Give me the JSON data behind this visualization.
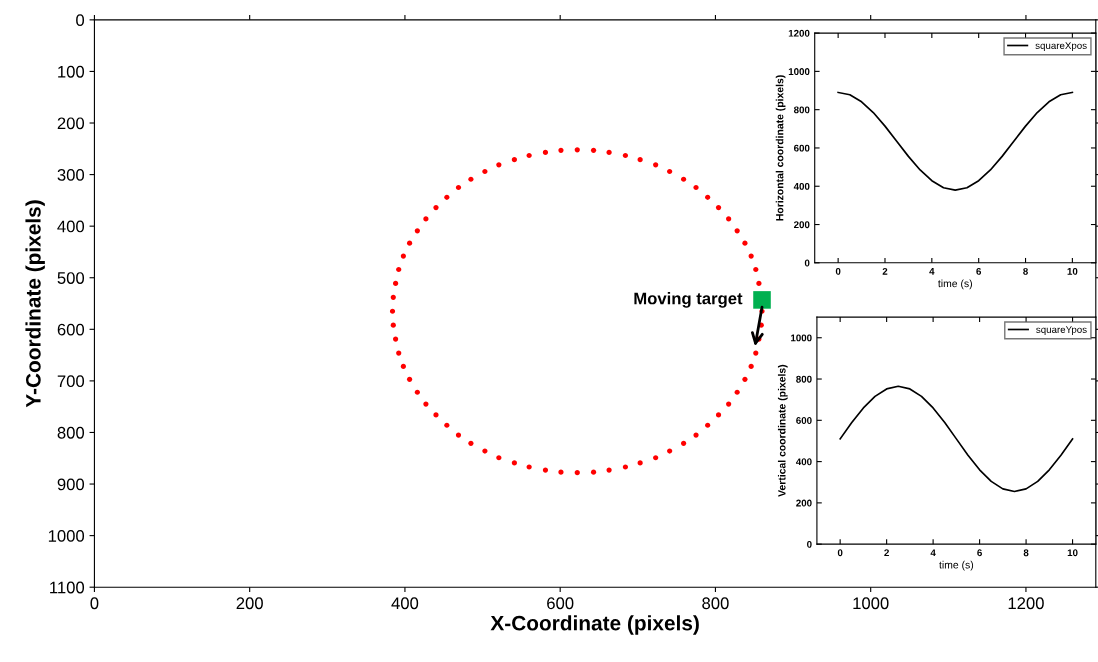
{
  "chart_data": [
    {
      "type": "line",
      "xlabel": "X-Coordinate (pixels)",
      "ylabel": "Y-Coordinate (pixels)",
      "xlim": [
        0,
        1290
      ],
      "ylim": [
        1100,
        0
      ],
      "xticks": [
        0,
        200,
        400,
        600,
        800,
        1000,
        1200
      ],
      "yticks": [
        0,
        100,
        200,
        300,
        400,
        500,
        600,
        700,
        800,
        900,
        1000,
        1100
      ],
      "grid": false,
      "legend": false,
      "annotations": [
        {
          "text": "Moving target",
          "x": 860,
          "y": 543
        }
      ],
      "series": [
        {
          "type": "scatter",
          "color": "#ff0000",
          "marker": "circle",
          "x": [
            860,
            859,
            856,
            852,
            846,
            838,
            828,
            817,
            804,
            790,
            775,
            759,
            741,
            723,
            703,
            684,
            663,
            643,
            622,
            601,
            581,
            560,
            541,
            521,
            503,
            485,
            469,
            454,
            440,
            427,
            416,
            406,
            398,
            392,
            388,
            385,
            384,
            385,
            388,
            392,
            398,
            406,
            416,
            427,
            440,
            454,
            469,
            485,
            503,
            521,
            541,
            560,
            581,
            601,
            622,
            643,
            663,
            684,
            703,
            723,
            741,
            759,
            775,
            790,
            804,
            817,
            828,
            838,
            846,
            852,
            856,
            859
          ],
          "values": [
            565,
            null,
            511,
            484,
            458,
            433,
            409,
            386,
            364,
            344,
            325,
            309,
            294,
            281,
            271,
            263,
            257,
            253,
            252,
            253,
            257,
            263,
            271,
            281,
            294,
            309,
            325,
            344,
            364,
            386,
            409,
            433,
            458,
            484,
            511,
            538,
            565,
            592,
            619,
            646,
            672,
            697,
            722,
            745,
            766,
            786,
            805,
            821,
            836,
            849,
            859,
            867,
            873,
            877,
            878,
            877,
            873,
            867,
            859,
            849,
            836,
            821,
            805,
            786,
            766,
            745,
            722,
            697,
            672,
            646,
            619,
            592
          ]
        },
        {
          "type": "scatter",
          "color": "#00b050",
          "marker": "square",
          "x": [
            860
          ],
          "values": [
            543
          ]
        }
      ]
    },
    {
      "type": "line",
      "xlabel": "time (s)",
      "ylabel": "Horizontal coordinate (pixels)",
      "xlim": [
        -1,
        11
      ],
      "ylim": [
        0,
        1200
      ],
      "xticks": [
        0,
        2,
        4,
        6,
        8,
        10
      ],
      "yticks": [
        0,
        200,
        400,
        600,
        800,
        1000,
        1200
      ],
      "grid": false,
      "legend": "top right",
      "series": [
        {
          "name": "squareXpos",
          "color": "#000000",
          "line_style": "solid",
          "x": [
            0,
            0.5,
            1,
            1.5,
            2,
            2.5,
            3,
            3.5,
            4,
            4.5,
            5,
            5.5,
            6,
            6.5,
            7,
            7.5,
            8,
            8.5,
            9,
            9.5,
            10
          ],
          "values": [
            890,
            878,
            841,
            785,
            714,
            635,
            556,
            485,
            429,
            392,
            380,
            392,
            429,
            485,
            556,
            635,
            714,
            785,
            841,
            878,
            890
          ]
        }
      ]
    },
    {
      "type": "line",
      "xlabel": "time (s)",
      "ylabel": "Vertical coordinate (pixels)",
      "xlim": [
        -1,
        11
      ],
      "ylim": [
        0,
        1100
      ],
      "xticks": [
        0,
        2,
        4,
        6,
        8,
        10
      ],
      "yticks": [
        0,
        200,
        400,
        600,
        800,
        1000
      ],
      "grid": false,
      "legend": "top right",
      "series": [
        {
          "name": "squareYpos",
          "color": "#000000",
          "line_style": "solid",
          "x": [
            0,
            0.5,
            1,
            1.5,
            2,
            2.5,
            3,
            3.5,
            4,
            4.5,
            5,
            5.5,
            6,
            6.5,
            7,
            7.5,
            8,
            8.5,
            9,
            9.5,
            10
          ],
          "values": [
            510,
            589,
            660,
            716,
            752,
            765,
            752,
            716,
            660,
            589,
            510,
            431,
            360,
            304,
            268,
            255,
            268,
            304,
            360,
            431,
            510
          ]
        }
      ]
    }
  ]
}
